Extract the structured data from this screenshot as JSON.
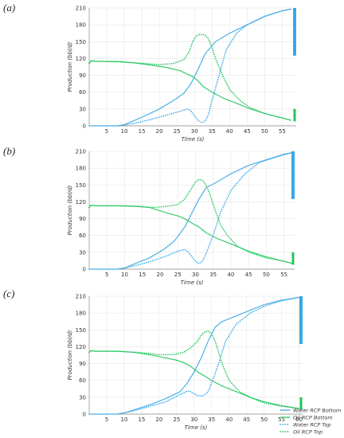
{
  "chart_data": [
    {
      "type": "line",
      "panel_label": "(a)",
      "xlabel": "Time (s)",
      "ylabel": "Production (bbl/d)",
      "xlim": [
        0,
        59
      ],
      "ylim": [
        0,
        210
      ],
      "xticks": [
        5,
        10,
        15,
        20,
        25,
        30,
        35,
        40,
        45,
        50,
        55
      ],
      "yticks": [
        0,
        30,
        60,
        90,
        120,
        150,
        180,
        210
      ],
      "grid": true,
      "series": [
        {
          "key": "water_bottom",
          "style": "solid",
          "color": "#3aa8e6",
          "x": [
            0,
            8,
            10,
            13,
            16,
            20,
            24,
            27,
            29,
            31,
            33,
            36,
            40,
            45,
            50,
            55,
            57.5
          ],
          "y": [
            0,
            0,
            2,
            10,
            18,
            30,
            45,
            58,
            75,
            100,
            128,
            150,
            165,
            180,
            195,
            205,
            208
          ]
        },
        {
          "key": "oil_bottom",
          "style": "solid",
          "color": "#22c55e",
          "x": [
            0,
            0.5,
            2,
            8,
            13,
            18,
            22,
            26,
            28,
            29.5,
            31,
            32.5,
            35,
            38,
            42,
            46,
            50,
            55,
            57.5
          ],
          "y": [
            110,
            116,
            115,
            115,
            112,
            108,
            104,
            98,
            92,
            88,
            80,
            70,
            60,
            50,
            40,
            30,
            22,
            14,
            10
          ]
        },
        {
          "key": "water_top",
          "style": "dotted",
          "color": "#3aa8e6",
          "x": [
            0,
            8,
            10,
            14,
            18,
            22,
            26,
            28,
            29,
            30,
            31,
            32,
            33,
            34,
            35,
            37,
            39,
            42,
            45,
            50,
            55,
            57.5
          ],
          "y": [
            0,
            0,
            1,
            6,
            12,
            19,
            26,
            30,
            27,
            18,
            10,
            6,
            8,
            20,
            45,
            90,
            135,
            165,
            180,
            195,
            205,
            208
          ]
        },
        {
          "key": "oil_top",
          "style": "dotted",
          "color": "#22c55e",
          "x": [
            0,
            0.5,
            2,
            8,
            14,
            20,
            24,
            27,
            28.5,
            29.5,
            30.5,
            31.5,
            33,
            34,
            35,
            36,
            38,
            40,
            43,
            46,
            50,
            55,
            57.5
          ],
          "y": [
            112,
            116,
            115,
            114,
            112,
            109,
            111,
            118,
            132,
            150,
            160,
            163,
            162,
            155,
            140,
            120,
            90,
            65,
            45,
            32,
            22,
            14,
            10
          ]
        }
      ]
    },
    {
      "type": "line",
      "panel_label": "(b)",
      "xlabel": "Time (s)",
      "ylabel": "Production (bbl/d)",
      "xlim": [
        0,
        58
      ],
      "ylim": [
        0,
        210
      ],
      "xticks": [
        5,
        10,
        15,
        20,
        25,
        30,
        35,
        40,
        45,
        50,
        55
      ],
      "yticks": [
        0,
        30,
        60,
        90,
        120,
        150,
        180,
        210
      ],
      "grid": true,
      "series": [
        {
          "key": "water_bottom",
          "style": "solid",
          "color": "#3aa8e6",
          "x": [
            0,
            8,
            10,
            13,
            17,
            21,
            24,
            27,
            29,
            31,
            33,
            36,
            40,
            45,
            50,
            55,
            57.5
          ],
          "y": [
            0,
            0,
            2,
            10,
            20,
            35,
            50,
            75,
            100,
            125,
            145,
            155,
            170,
            185,
            195,
            205,
            208
          ]
        },
        {
          "key": "oil_bottom",
          "style": "solid",
          "color": "#22c55e",
          "x": [
            0,
            0.5,
            2,
            8,
            13,
            17,
            22,
            25,
            27,
            29,
            31,
            33,
            36,
            40,
            45,
            50,
            55,
            57.5
          ],
          "y": [
            110,
            114,
            113,
            113,
            112,
            110,
            100,
            95,
            90,
            82,
            75,
            65,
            55,
            45,
            32,
            22,
            14,
            10
          ]
        },
        {
          "key": "water_top",
          "style": "dotted",
          "color": "#3aa8e6",
          "x": [
            0,
            8,
            10,
            14,
            18,
            22,
            25,
            27,
            28,
            29,
            30,
            31,
            32,
            33,
            35,
            37,
            40,
            44,
            48,
            53,
            57.5
          ],
          "y": [
            0,
            0,
            2,
            8,
            15,
            24,
            32,
            35,
            30,
            22,
            14,
            10,
            14,
            28,
            60,
            100,
            140,
            170,
            190,
            200,
            208
          ]
        },
        {
          "key": "oil_top",
          "style": "dotted",
          "color": "#22c55e",
          "x": [
            0,
            0.5,
            2,
            8,
            14,
            18,
            22,
            25,
            27,
            28.5,
            30,
            31,
            32,
            33,
            34,
            35,
            37,
            39,
            42,
            46,
            50,
            55,
            57.5
          ],
          "y": [
            110,
            114,
            113,
            113,
            112,
            110,
            112,
            115,
            125,
            140,
            155,
            160,
            158,
            150,
            135,
            115,
            80,
            60,
            40,
            28,
            20,
            14,
            10
          ]
        }
      ]
    },
    {
      "type": "line",
      "panel_label": "(c)",
      "xlabel": "Time (s)",
      "ylabel": "Production (bbl/d)",
      "xlim": [
        0,
        61
      ],
      "ylim": [
        0,
        210
      ],
      "xticks": [
        5,
        10,
        15,
        20,
        25,
        30,
        35,
        40,
        45,
        50,
        55,
        60
      ],
      "yticks": [
        0,
        30,
        60,
        90,
        120,
        150,
        180,
        210
      ],
      "grid": true,
      "series": [
        {
          "key": "water_bottom",
          "style": "solid",
          "color": "#3aa8e6",
          "x": [
            0,
            8,
            10,
            14,
            18,
            22,
            26,
            28,
            30,
            32,
            34,
            36,
            38,
            42,
            46,
            50,
            55,
            60
          ],
          "y": [
            0,
            0,
            2,
            10,
            18,
            28,
            40,
            55,
            75,
            100,
            130,
            155,
            165,
            175,
            185,
            195,
            203,
            208
          ]
        },
        {
          "key": "oil_bottom",
          "style": "solid",
          "color": "#22c55e",
          "x": [
            0,
            0.5,
            2,
            8,
            13,
            18,
            22,
            25,
            27,
            29,
            31,
            33,
            35,
            38,
            42,
            46,
            50,
            55,
            60
          ],
          "y": [
            110,
            113,
            112,
            112,
            110,
            105,
            100,
            96,
            92,
            85,
            75,
            68,
            60,
            50,
            40,
            30,
            22,
            15,
            10
          ]
        },
        {
          "key": "water_top",
          "style": "dotted",
          "color": "#3aa8e6",
          "x": [
            0,
            8,
            10,
            14,
            18,
            22,
            25,
            27,
            28,
            29,
            30,
            31,
            32,
            33,
            34,
            35,
            37,
            39,
            42,
            46,
            50,
            55,
            60
          ],
          "y": [
            0,
            0,
            2,
            8,
            15,
            22,
            32,
            38,
            41,
            40,
            36,
            33,
            32,
            34,
            40,
            55,
            90,
            130,
            160,
            180,
            192,
            202,
            208
          ]
        },
        {
          "key": "oil_top",
          "style": "dotted",
          "color": "#22c55e",
          "x": [
            0,
            0.5,
            2,
            8,
            14,
            20,
            24,
            27,
            29,
            31,
            32,
            33,
            34,
            35,
            36,
            37,
            38,
            40,
            43,
            47,
            50,
            55,
            60
          ],
          "y": [
            110,
            113,
            112,
            112,
            110,
            106,
            106,
            110,
            118,
            130,
            140,
            146,
            148,
            143,
            130,
            110,
            90,
            60,
            40,
            27,
            20,
            14,
            10
          ]
        }
      ],
      "legend": {
        "placement": "bottom-right-outside",
        "entries": [
          {
            "label": "Water RCP Bottom",
            "style": "solid",
            "color": "#3aa8e6"
          },
          {
            "label": "Oil RCP Bottom",
            "style": "solid",
            "color": "#22c55e"
          },
          {
            "label": "Water RCP Top",
            "style": "dotted",
            "color": "#3aa8e6"
          },
          {
            "label": "Oil RCP Top",
            "style": "dotted",
            "color": "#22c55e"
          }
        ]
      }
    }
  ]
}
